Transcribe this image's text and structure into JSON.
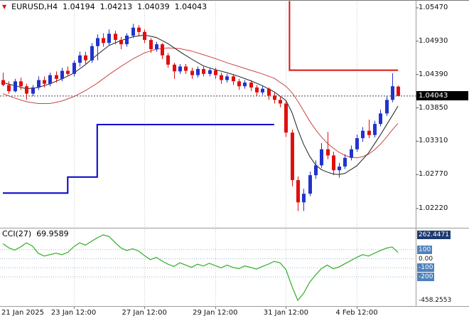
{
  "header": {
    "symbol": "EURUSD,H4",
    "open": "1.04194",
    "high": "1.04213",
    "low": "1.04039",
    "close": "1.04043",
    "tick_icon": "down-triangle"
  },
  "price_axis": {
    "labels": [
      "1.05470",
      "1.04930",
      "1.04390",
      "1.03850",
      "1.03310",
      "1.02770",
      "1.02220"
    ],
    "current": "1.04043"
  },
  "indicator": {
    "name": "CCI(27)",
    "value": "69.9589",
    "scale_items": [
      {
        "text": "262.4471",
        "value": 262.4471,
        "style": "dark",
        "line": false
      },
      {
        "text": "100",
        "value": 100,
        "style": "blue",
        "line": true
      },
      {
        "text": "0.00",
        "value": 0,
        "style": "plain",
        "line": true
      },
      {
        "text": "-100",
        "value": -100,
        "style": "blue",
        "line": true
      },
      {
        "text": "-200",
        "value": -200,
        "style": "blue",
        "line": true
      },
      {
        "text": "-458.2553",
        "value": -458.2553,
        "style": "plain",
        "line": false
      }
    ]
  },
  "colors": {
    "background": "#ffffff",
    "grid": "#c8c8c8",
    "bull": "#2233cc",
    "bear": "#e01010",
    "ma_fast": "#202020",
    "ma_slow": "#cc4444",
    "support_line": "#0000cc",
    "resistance_line": "#dd1111",
    "cci_line": "#3db332",
    "level_line": "#9fb9d0",
    "current_tag_bg": "#000000",
    "current_tag_text": "#ffffff"
  },
  "chart_data": {
    "type": "candlestick",
    "title": "EURUSD H4 with moving averages, step trend lines and CCI(27)",
    "x_axis": {
      "labels": [
        {
          "text": "21 Jan 2025",
          "bar": 0,
          "align": "left"
        },
        {
          "text": "23 Jan 12:00",
          "bar": 12
        },
        {
          "text": "27 Jan 12:00",
          "bar": 24
        },
        {
          "text": "29 Jan 12:00",
          "bar": 36
        },
        {
          "text": "31 Jan 12:00",
          "bar": 48
        },
        {
          "text": "4 Feb 12:00",
          "bar": 60
        }
      ],
      "grid_bars": [
        12,
        24,
        36,
        48,
        60
      ]
    },
    "candles": [
      [
        1.043,
        1.0442,
        1.042,
        1.0422
      ],
      [
        1.0422,
        1.0428,
        1.0408,
        1.0412
      ],
      [
        1.0412,
        1.0432,
        1.041,
        1.0428
      ],
      [
        1.0428,
        1.0434,
        1.0414,
        1.042
      ],
      [
        1.042,
        1.0424,
        1.0398,
        1.0408
      ],
      [
        1.0408,
        1.0422,
        1.0404,
        1.0418
      ],
      [
        1.0418,
        1.0436,
        1.0414,
        1.043
      ],
      [
        1.043,
        1.0436,
        1.0418,
        1.0424
      ],
      [
        1.0424,
        1.0442,
        1.042,
        1.0438
      ],
      [
        1.0438,
        1.0444,
        1.0426,
        1.0432
      ],
      [
        1.0432,
        1.045,
        1.0428,
        1.0445
      ],
      [
        1.0445,
        1.0452,
        1.0436,
        1.044
      ],
      [
        1.044,
        1.0462,
        1.0436,
        1.0458
      ],
      [
        1.0458,
        1.0476,
        1.0452,
        1.047
      ],
      [
        1.047,
        1.0476,
        1.0455,
        1.0462
      ],
      [
        1.0462,
        1.049,
        1.0458,
        1.0485
      ],
      [
        1.0485,
        1.0504,
        1.0462,
        1.0498
      ],
      [
        1.0498,
        1.0506,
        1.0484,
        1.049
      ],
      [
        1.049,
        1.0512,
        1.0486,
        1.0505
      ],
      [
        1.0505,
        1.051,
        1.0488,
        1.0495
      ],
      [
        1.0495,
        1.05,
        1.048,
        1.0488
      ],
      [
        1.0488,
        1.0506,
        1.0484,
        1.0502
      ],
      [
        1.0502,
        1.0521,
        1.0498,
        1.0515
      ],
      [
        1.0515,
        1.0519,
        1.0502,
        1.0508
      ],
      [
        1.0508,
        1.0512,
        1.049,
        1.0495
      ],
      [
        1.0495,
        1.0498,
        1.0474,
        1.048
      ],
      [
        1.048,
        1.0492,
        1.0476,
        1.0488
      ],
      [
        1.0488,
        1.049,
        1.0464,
        1.047
      ],
      [
        1.047,
        1.0474,
        1.045,
        1.0455
      ],
      [
        1.0455,
        1.0458,
        1.0432,
        1.0444
      ],
      [
        1.0444,
        1.0456,
        1.044,
        1.0452
      ],
      [
        1.0452,
        1.0456,
        1.044,
        1.0445
      ],
      [
        1.0445,
        1.045,
        1.0432,
        1.0438
      ],
      [
        1.0438,
        1.0452,
        1.0434,
        1.0448
      ],
      [
        1.0448,
        1.0452,
        1.0436,
        1.044
      ],
      [
        1.044,
        1.045,
        1.0436,
        1.0446
      ],
      [
        1.0446,
        1.045,
        1.0432,
        1.0438
      ],
      [
        1.0438,
        1.0442,
        1.0424,
        1.043
      ],
      [
        1.043,
        1.044,
        1.0426,
        1.0436
      ],
      [
        1.0436,
        1.044,
        1.0422,
        1.0428
      ],
      [
        1.0428,
        1.0432,
        1.0414,
        1.042
      ],
      [
        1.042,
        1.043,
        1.0416,
        1.0426
      ],
      [
        1.0426,
        1.043,
        1.0412,
        1.0418
      ],
      [
        1.0418,
        1.0422,
        1.0404,
        1.041
      ],
      [
        1.041,
        1.042,
        1.0406,
        1.0416
      ],
      [
        1.0416,
        1.0418,
        1.0398,
        1.0405
      ],
      [
        1.0405,
        1.041,
        1.0392,
        1.0398
      ],
      [
        1.0398,
        1.0404,
        1.0386,
        1.0392
      ],
      [
        1.0392,
        1.0396,
        1.0338,
        1.0345
      ],
      [
        1.0345,
        1.035,
        1.0258,
        1.0268
      ],
      [
        1.0268,
        1.0274,
        1.0218,
        1.0232
      ],
      [
        1.0232,
        1.0254,
        1.0218,
        1.0246
      ],
      [
        1.0246,
        1.0282,
        1.0242,
        1.0276
      ],
      [
        1.0276,
        1.03,
        1.027,
        1.0292
      ],
      [
        1.0292,
        1.0328,
        1.0288,
        1.0318
      ],
      [
        1.0318,
        1.0346,
        1.0302,
        1.0308
      ],
      [
        1.0308,
        1.0314,
        1.0276,
        1.0284
      ],
      [
        1.0284,
        1.0296,
        1.0272,
        1.029
      ],
      [
        1.029,
        1.031,
        1.0286,
        1.0304
      ],
      [
        1.0304,
        1.0324,
        1.03,
        1.0318
      ],
      [
        1.0318,
        1.0342,
        1.0314,
        1.0336
      ],
      [
        1.0336,
        1.0354,
        1.033,
        1.0348
      ],
      [
        1.0348,
        1.0366,
        1.0336,
        1.0341
      ],
      [
        1.0341,
        1.0364,
        1.0337,
        1.0359
      ],
      [
        1.0359,
        1.0382,
        1.0355,
        1.0376
      ],
      [
        1.0376,
        1.0404,
        1.0372,
        1.0398
      ],
      [
        1.0398,
        1.0441,
        1.0394,
        1.042
      ],
      [
        1.04194,
        1.04213,
        1.04039,
        1.04043
      ]
    ],
    "overlays": {
      "ma_fast_points": [
        [
          0,
          1.0426
        ],
        [
          2,
          1.0421
        ],
        [
          4,
          1.0416
        ],
        [
          6,
          1.0418
        ],
        [
          8,
          1.0424
        ],
        [
          10,
          1.0432
        ],
        [
          12,
          1.0441
        ],
        [
          14,
          1.0455
        ],
        [
          16,
          1.0471
        ],
        [
          18,
          1.0486
        ],
        [
          20,
          1.0494
        ],
        [
          22,
          1.05
        ],
        [
          24,
          1.0503
        ],
        [
          26,
          1.0499
        ],
        [
          28,
          1.0489
        ],
        [
          30,
          1.0476
        ],
        [
          32,
          1.0464
        ],
        [
          34,
          1.0453
        ],
        [
          36,
          1.0447
        ],
        [
          38,
          1.0442
        ],
        [
          40,
          1.0436
        ],
        [
          42,
          1.0429
        ],
        [
          44,
          1.0421
        ],
        [
          46,
          1.0411
        ],
        [
          48,
          1.0397
        ],
        [
          49,
          1.0378
        ],
        [
          50,
          1.035
        ],
        [
          51,
          1.0326
        ],
        [
          52,
          1.0307
        ],
        [
          53,
          1.0293
        ],
        [
          54,
          1.0285
        ],
        [
          55,
          1.0281
        ],
        [
          56,
          1.0278
        ],
        [
          57,
          1.0277
        ],
        [
          58,
          1.0279
        ],
        [
          60,
          1.0291
        ],
        [
          62,
          1.0312
        ],
        [
          64,
          1.0341
        ],
        [
          66,
          1.0372
        ],
        [
          67,
          1.0388
        ]
      ],
      "ma_slow_points": [
        [
          0,
          1.0408
        ],
        [
          2,
          1.0401
        ],
        [
          4,
          1.0395
        ],
        [
          6,
          1.0392
        ],
        [
          8,
          1.0392
        ],
        [
          10,
          1.0396
        ],
        [
          12,
          1.0403
        ],
        [
          14,
          1.0413
        ],
        [
          16,
          1.0425
        ],
        [
          18,
          1.0439
        ],
        [
          20,
          1.0452
        ],
        [
          22,
          1.0464
        ],
        [
          24,
          1.0474
        ],
        [
          26,
          1.048
        ],
        [
          28,
          1.0482
        ],
        [
          30,
          1.0481
        ],
        [
          32,
          1.0477
        ],
        [
          34,
          1.0471
        ],
        [
          36,
          1.0465
        ],
        [
          38,
          1.0458
        ],
        [
          40,
          1.0452
        ],
        [
          42,
          1.0446
        ],
        [
          44,
          1.044
        ],
        [
          46,
          1.0433
        ],
        [
          48,
          1.042
        ],
        [
          49,
          1.041
        ],
        [
          50,
          1.0396
        ],
        [
          51,
          1.038
        ],
        [
          52,
          1.0364
        ],
        [
          53,
          1.035
        ],
        [
          54,
          1.0338
        ],
        [
          55,
          1.0328
        ],
        [
          56,
          1.032
        ],
        [
          57,
          1.0313
        ],
        [
          58,
          1.0308
        ],
        [
          59,
          1.0305
        ],
        [
          60,
          1.0304
        ],
        [
          61,
          1.0306
        ],
        [
          62,
          1.031
        ],
        [
          63,
          1.0317
        ],
        [
          64,
          1.0326
        ],
        [
          65,
          1.0337
        ],
        [
          66,
          1.0349
        ],
        [
          67,
          1.036
        ]
      ],
      "support_step_points": [
        [
          0,
          1.0247
        ],
        [
          11,
          1.0247
        ],
        [
          11,
          1.0273
        ],
        [
          16,
          1.0273
        ],
        [
          16,
          1.0358
        ],
        [
          46,
          1.0358
        ]
      ],
      "resistance_points": [
        [
          48.6,
          1.0558
        ],
        [
          48.6,
          1.0446
        ],
        [
          67,
          1.0446
        ]
      ]
    },
    "indicator_cci": {
      "points": [
        [
          0,
          165
        ],
        [
          1,
          120
        ],
        [
          2,
          95
        ],
        [
          3,
          130
        ],
        [
          4,
          175
        ],
        [
          5,
          140
        ],
        [
          6,
          60
        ],
        [
          7,
          30
        ],
        [
          8,
          45
        ],
        [
          9,
          60
        ],
        [
          10,
          45
        ],
        [
          11,
          70
        ],
        [
          12,
          130
        ],
        [
          13,
          175
        ],
        [
          14,
          150
        ],
        [
          15,
          190
        ],
        [
          16,
          230
        ],
        [
          17,
          262
        ],
        [
          18,
          245
        ],
        [
          19,
          180
        ],
        [
          20,
          120
        ],
        [
          21,
          90
        ],
        [
          22,
          110
        ],
        [
          23,
          85
        ],
        [
          24,
          35
        ],
        [
          25,
          -10
        ],
        [
          26,
          15
        ],
        [
          27,
          -25
        ],
        [
          28,
          -60
        ],
        [
          29,
          -85
        ],
        [
          30,
          -45
        ],
        [
          31,
          -70
        ],
        [
          32,
          -95
        ],
        [
          33,
          -60
        ],
        [
          34,
          -80
        ],
        [
          35,
          -50
        ],
        [
          36,
          -75
        ],
        [
          37,
          -100
        ],
        [
          38,
          -70
        ],
        [
          39,
          -95
        ],
        [
          40,
          -110
        ],
        [
          41,
          -80
        ],
        [
          42,
          -95
        ],
        [
          43,
          -115
        ],
        [
          44,
          -85
        ],
        [
          45,
          -60
        ],
        [
          46,
          -30
        ],
        [
          47,
          -45
        ],
        [
          48,
          -120
        ],
        [
          49,
          -300
        ],
        [
          50,
          -458.2553
        ],
        [
          51,
          -380
        ],
        [
          52,
          -260
        ],
        [
          53,
          -180
        ],
        [
          54,
          -110
        ],
        [
          55,
          -70
        ],
        [
          56,
          -110
        ],
        [
          57,
          -90
        ],
        [
          58,
          -55
        ],
        [
          59,
          -20
        ],
        [
          60,
          15
        ],
        [
          61,
          45
        ],
        [
          62,
          30
        ],
        [
          63,
          60
        ],
        [
          64,
          90
        ],
        [
          65,
          115
        ],
        [
          66,
          130
        ],
        [
          67,
          69.9589
        ]
      ]
    }
  }
}
